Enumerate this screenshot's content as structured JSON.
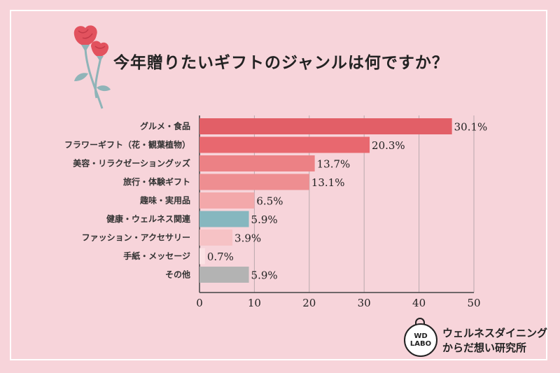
{
  "title": "今年贈りたいギフトのジャンルは何ですか？",
  "chart_data": {
    "type": "bar",
    "orientation": "horizontal",
    "title": "今年贈りたいギフトのジャンルは何ですか？",
    "categories": [
      "グルメ・食品",
      "フラワーギフト（花・観葉植物）",
      "美容・リラクゼーショングッズ",
      "旅行・体験ギフト",
      "趣味・実用品",
      "健康・ウェルネス関連",
      "ファッション・アクセサリー",
      "手紙・メッセージ",
      "その他"
    ],
    "values": [
      30.1,
      20.3,
      13.7,
      13.1,
      6.5,
      5.9,
      3.9,
      0.7,
      5.9
    ],
    "value_labels": [
      "30.1%",
      "20.3%",
      "13.7%",
      "13.1%",
      "6.5%",
      "5.9%",
      "3.9%",
      "0.7%",
      "5.9%"
    ],
    "bar_values": [
      46,
      31,
      21,
      20,
      10,
      9,
      6,
      1,
      9
    ],
    "colors": [
      "#e25f67",
      "#e8686f",
      "#ec8185",
      "#ee8e91",
      "#f3a8aa",
      "#86b7bf",
      "#f6c2c5",
      "#fbe2e4",
      "#b3b3b3"
    ],
    "xlim": [
      0,
      50
    ],
    "xticks": [
      0,
      10,
      20,
      30,
      40,
      50
    ],
    "grid": true
  },
  "logo": {
    "badge": "WD\nLABO",
    "text": "ウェルネスダイニング\nからだ想い研究所"
  },
  "icons": {
    "decoration": "carnation-flower-icon"
  }
}
